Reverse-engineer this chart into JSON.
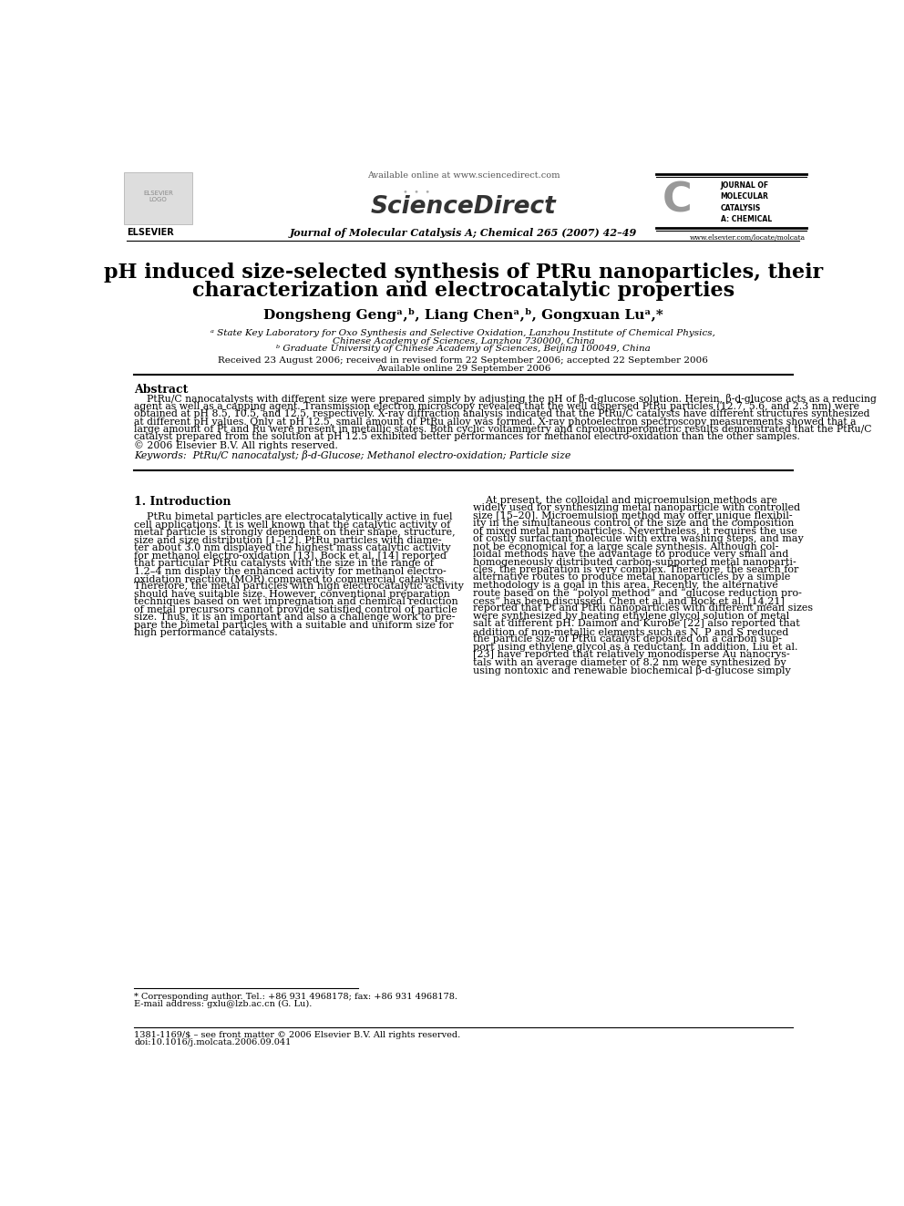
{
  "background_color": "#ffffff",
  "header_available_text": "Available online at www.sciencedirect.com",
  "journal_name_center": "Journal of Molecular Catalysis A; Chemical 265 (2007) 42–49",
  "elsevier_text": "ELSEVIER",
  "url_right": "www.elsevier.com/locate/molcata",
  "title_line1": "pH induced size-selected synthesis of PtRu nanoparticles, their",
  "title_line2": "characterization and electrocatalytic properties",
  "author_line": "Dongsheng Gengᵃ,ᵇ, Liang Chenᵃ,ᵇ, Gongxuan Luᵃ,*",
  "affil_a": "ᵃ State Key Laboratory for Oxo Synthesis and Selective Oxidation, Lanzhou Institute of Chemical Physics,",
  "affil_a2": "Chinese Academy of Sciences, Lanzhou 730000, China",
  "affil_b": "ᵇ Graduate University of Chinese Academy of Sciences, Beijing 100049, China",
  "received": "Received 23 August 2006; received in revised form 22 September 2006; accepted 22 September 2006",
  "available_online": "Available online 29 September 2006",
  "abstract_title": "Abstract",
  "abstract_lines": [
    "    PtRu/C nanocatalysts with different size were prepared simply by adjusting the pH of β-d-glucose solution. Herein, β-d-glucose acts as a reducing",
    "agent as well as a capping agent. Transmission electron microscopy revealed that the well dispersed PtRu particles (12.7, 5.6, and 2.3 nm) were",
    "obtained at pH 8.5, 10.5, and 12.5, respectively. X-ray diffraction analysis indicated that the PtRu/C catalysts have different structures synthesized",
    "at different pH values. Only at pH 12.5, small amount of PtRu alloy was formed. X-ray photoelectron spectroscopy measurements showed that a",
    "large amount of Pt and Ru were present in metallic states. Both cyclic voltammetry and chronoamperometric results demonstrated that the PtRu/C",
    "catalyst prepared from the solution at pH 12.5 exhibited better performances for methanol electro-oxidation than the other samples.",
    "© 2006 Elsevier B.V. All rights reserved."
  ],
  "keywords": "Keywords:  PtRu/C nanocatalyst; β-d-Glucose; Methanol electro-oxidation; Particle size",
  "section1_title": "1. Introduction",
  "col1_lines": [
    "    PtRu bimetal particles are electrocatalytically active in fuel",
    "cell applications. It is well known that the catalytic activity of",
    "metal particle is strongly dependent on their shape, structure,",
    "size and size distribution [1–12]. PtRu particles with diame-",
    "ter about 3.0 nm displayed the highest mass catalytic activity",
    "for methanol electro-oxidation [13]. Bock et al. [14] reported",
    "that particular PtRu catalysts with the size in the range of",
    "1.2–4 nm display the enhanced activity for methanol electro-",
    "oxidation reaction (MOR) compared to commercial catalysts.",
    "Therefore, the metal particles with high electrocatalytic activity",
    "should have suitable size. However, conventional preparation",
    "techniques based on wet impregnation and chemical reduction",
    "of metal precursors cannot provide satisfied control of particle",
    "size. Thus, it is an important and also a challenge work to pre-",
    "pare the bimetal particles with a suitable and uniform size for",
    "high performance catalysts."
  ],
  "col2_lines": [
    "    At present, the colloidal and microemulsion methods are",
    "widely used for synthesizing metal nanoparticle with controlled",
    "size [15–20]. Microemulsion method may offer unique flexibil-",
    "ity in the simultaneous control of the size and the composition",
    "of mixed metal nanoparticles. Nevertheless, it requires the use",
    "of costly surfactant molecule with extra washing steps, and may",
    "not be economical for a large scale synthesis. Although col-",
    "loidal methods have the advantage to produce very small and",
    "homogeneously distributed carbon-supported metal nanoparti-",
    "cles, the preparation is very complex. Therefore, the search for",
    "alternative routes to produce metal nanoparticles by a simple",
    "methodology is a goal in this area. Recently, the alternative",
    "route based on the “polyol method” and “glucose reduction pro-",
    "cess” has been discussed. Chen et al. and Bock et al. [14,21]",
    "reported that Pt and PtRu nanoparticles with different mean sizes",
    "were synthesized by heating ethylene glycol solution of metal",
    "salt at different pH. Daimon and Kurobe [22] also reported that",
    "addition of non-metallic elements such as N, P and S reduced",
    "the particle size of PtRu catalyst deposited on a carbon sup-",
    "port using ethylene glycol as a reductant. In addition, Liu et al.",
    "[23] have reported that relatively monodisperse Au nanocrys-",
    "tals with an average diameter of 8.2 nm were synthesized by",
    "using nontoxic and renewable biochemical β-d-glucose simply"
  ],
  "footnote1": "* Corresponding author. Tel.: +86 931 4968178; fax: +86 931 4968178.",
  "footnote2": "E-mail address: gxlu@lzb.ac.cn (G. Lu).",
  "footnote3": "1381-1169/$ – see front matter © 2006 Elsevier B.V. All rights reserved.",
  "footnote4": "doi:10.1016/j.molcata.2006.09.041"
}
